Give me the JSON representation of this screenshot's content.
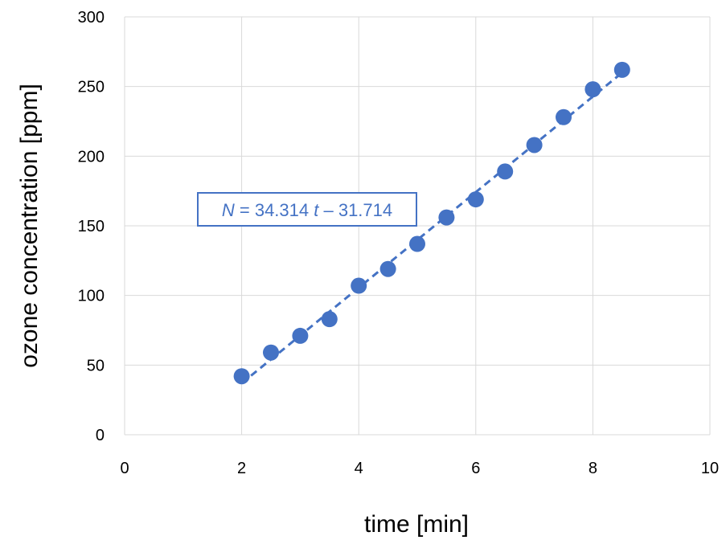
{
  "chart_data": {
    "type": "scatter",
    "title": "",
    "xlabel": "time [min]",
    "ylabel": "ozone concentration [ppm]",
    "xlim": [
      0,
      10
    ],
    "ylim": [
      0,
      300
    ],
    "x_ticks": [
      0,
      2,
      4,
      6,
      8,
      10
    ],
    "y_ticks": [
      0,
      50,
      100,
      150,
      200,
      250,
      300
    ],
    "grid": true,
    "series": [
      {
        "color": "#4472c4",
        "points": [
          {
            "x": 2.0,
            "y": 42
          },
          {
            "x": 2.5,
            "y": 59
          },
          {
            "x": 3.0,
            "y": 71
          },
          {
            "x": 3.5,
            "y": 83
          },
          {
            "x": 4.0,
            "y": 107
          },
          {
            "x": 4.5,
            "y": 119
          },
          {
            "x": 5.0,
            "y": 137
          },
          {
            "x": 5.5,
            "y": 156
          },
          {
            "x": 6.0,
            "y": 169
          },
          {
            "x": 6.5,
            "y": 189
          },
          {
            "x": 7.0,
            "y": 208
          },
          {
            "x": 7.5,
            "y": 228
          },
          {
            "x": 8.0,
            "y": 248
          },
          {
            "x": 8.5,
            "y": 262
          }
        ]
      }
    ],
    "trendline": {
      "style": "dashed",
      "color": "#4472c4",
      "slope": 34.314,
      "intercept": -31.714,
      "x_range": [
        2,
        8.5
      ],
      "label_var": "N",
      "label_eq": " = 34.314 ",
      "label_t": "t",
      "label_rest": " – 31.714"
    }
  }
}
